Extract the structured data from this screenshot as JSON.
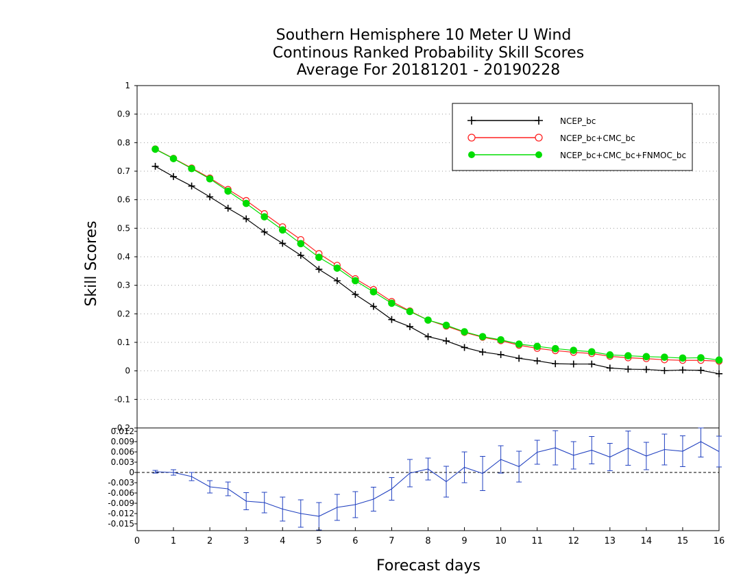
{
  "chart_data": {
    "type": "line",
    "title_lines": [
      "Southern Hemisphere 10 Meter U Wind",
      "Continous Ranked Probability Skill Scores",
      "Average For 20181201 - 20190228"
    ],
    "xlabel": "Forecast days",
    "ylabel": "Skill Scores",
    "xlim": [
      0,
      16
    ],
    "x_ticks": [
      "0",
      "1",
      "2",
      "3",
      "4",
      "5",
      "6",
      "7",
      "8",
      "9",
      "10",
      "11",
      "12",
      "13",
      "14",
      "15",
      "16"
    ],
    "x": [
      0.5,
      1,
      1.5,
      2,
      2.5,
      3,
      3.5,
      4,
      4.5,
      5,
      5.5,
      6,
      6.5,
      7,
      7.5,
      8,
      8.5,
      9,
      9.5,
      10,
      10.5,
      11,
      11.5,
      12,
      12.5,
      13,
      13.5,
      14,
      14.5,
      15,
      15.5,
      16
    ],
    "main_panel": {
      "ylim": [
        -0.2,
        1
      ],
      "y_ticks": [
        "1",
        "0.9",
        "0.8",
        "0.7",
        "0.6",
        "0.5",
        "0.4",
        "0.3",
        "0.2",
        "0.1",
        "0",
        "-0.1",
        "-0.2"
      ],
      "y_tick_values": [
        1,
        0.9,
        0.8,
        0.7,
        0.6,
        0.5,
        0.4,
        0.3,
        0.2,
        0.1,
        0,
        -0.1,
        -0.2
      ],
      "grid": "horizontal-dotted",
      "legend_position": "top-right",
      "series": [
        {
          "name": "NCEP_bc",
          "color": "#000000",
          "marker": "plus",
          "values": [
            0.717,
            0.681,
            0.648,
            0.61,
            0.57,
            0.533,
            0.487,
            0.447,
            0.405,
            0.356,
            0.316,
            0.268,
            0.226,
            0.18,
            0.155,
            0.12,
            0.105,
            0.082,
            0.066,
            0.057,
            0.044,
            0.035,
            0.025,
            0.024,
            0.024,
            0.01,
            0.006,
            0.005,
            0.001,
            0.003,
            0.002,
            -0.01
          ]
        },
        {
          "name": "NCEP_bc+CMC_bc",
          "color": "#ff2020",
          "marker": "open-circle",
          "values": [
            0.778,
            0.745,
            0.711,
            0.676,
            0.636,
            0.597,
            0.551,
            0.505,
            0.46,
            0.411,
            0.37,
            0.323,
            0.285,
            0.243,
            0.21,
            0.178,
            0.157,
            0.135,
            0.118,
            0.106,
            0.09,
            0.079,
            0.071,
            0.065,
            0.061,
            0.051,
            0.046,
            0.043,
            0.039,
            0.037,
            0.037,
            0.034
          ]
        },
        {
          "name": "NCEP_bc+CMC_bc+FNMOC_bc",
          "color": "#00dd00",
          "marker": "filled-circle",
          "values": [
            0.777,
            0.744,
            0.709,
            0.673,
            0.63,
            0.587,
            0.54,
            0.494,
            0.446,
            0.398,
            0.36,
            0.316,
            0.277,
            0.237,
            0.208,
            0.178,
            0.16,
            0.137,
            0.12,
            0.109,
            0.094,
            0.086,
            0.078,
            0.072,
            0.067,
            0.056,
            0.053,
            0.05,
            0.048,
            0.045,
            0.046,
            0.038
          ]
        }
      ]
    },
    "difference_panel": {
      "ylim": [
        -0.017,
        0.013
      ],
      "y_ticks": [
        "0.012",
        "0.009",
        "0.006",
        "0.003",
        "0",
        "-0.003",
        "-0.006",
        "-0.009",
        "-0.012",
        "-0.015"
      ],
      "y_tick_values": [
        0.012,
        0.009,
        0.006,
        0.003,
        0,
        -0.003,
        -0.006,
        -0.009,
        -0.012,
        -0.015
      ],
      "zero_line": "dashed",
      "color": "#2040c0",
      "values": [
        0.0002,
        0.0,
        -0.0012,
        -0.0042,
        -0.0048,
        -0.0084,
        -0.0088,
        -0.0107,
        -0.012,
        -0.0128,
        -0.0102,
        -0.0094,
        -0.0078,
        -0.0048,
        -0.0002,
        0.001,
        -0.0027,
        0.0015,
        -0.0003,
        0.0038,
        0.0017,
        0.0059,
        0.0072,
        0.005,
        0.0065,
        0.0045,
        0.0071,
        0.0048,
        0.0067,
        0.0062,
        0.009,
        0.0061
      ],
      "error_half_width": [
        0.0004,
        0.0008,
        0.0012,
        0.0018,
        0.002,
        0.0025,
        0.003,
        0.0035,
        0.004,
        0.004,
        0.0038,
        0.0038,
        0.0035,
        0.0033,
        0.004,
        0.0032,
        0.0045,
        0.0045,
        0.005,
        0.004,
        0.0045,
        0.0035,
        0.005,
        0.004,
        0.004,
        0.004,
        0.005,
        0.004,
        0.0045,
        0.0045,
        0.0045,
        0.0045
      ]
    }
  }
}
